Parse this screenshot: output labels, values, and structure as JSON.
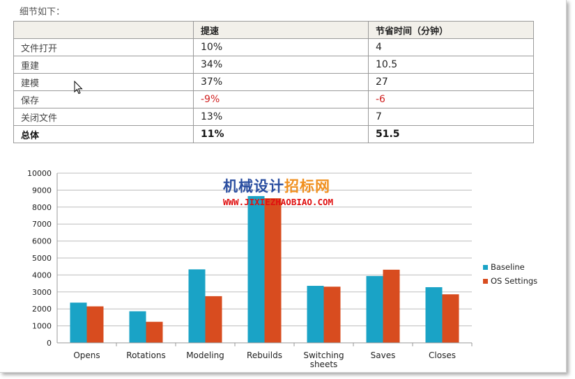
{
  "intro": "细节如下：",
  "table": {
    "headers": [
      "",
      "提速",
      "节省时间（分钟）"
    ],
    "rows": [
      {
        "category": "文件打开",
        "speedup": "10%",
        "saved": "4",
        "negative": false,
        "total": false
      },
      {
        "category": "重建",
        "speedup": "34%",
        "saved": "10.5",
        "negative": false,
        "total": false
      },
      {
        "category": "建模",
        "speedup": "37%",
        "saved": "27",
        "negative": false,
        "total": false
      },
      {
        "category": "保存",
        "speedup": "-9%",
        "saved": "-6",
        "negative": true,
        "total": false
      },
      {
        "category": "关闭文件",
        "speedup": "13%",
        "saved": "7",
        "negative": false,
        "total": false
      },
      {
        "category": "总体",
        "speedup": "11%",
        "saved": "51.5",
        "negative": false,
        "total": true
      }
    ]
  },
  "watermark": {
    "title_part1": "机械设计",
    "title_part2": "招标网",
    "url": "WWW.JIXIEZHAOBIAO.COM"
  },
  "colors": {
    "baseline": "#1aa3c6",
    "os_settings": "#d84c1f",
    "negative_text": "#d02020"
  },
  "chart_data": {
    "type": "bar",
    "categories": [
      "Opens",
      "Rotations",
      "Modeling",
      "Rebuilds",
      "Switching sheets",
      "Saves",
      "Closes"
    ],
    "series": [
      {
        "name": "Baseline",
        "values": [
          2370,
          1860,
          4330,
          8650,
          3360,
          3940,
          3280
        ]
      },
      {
        "name": "OS Settings",
        "values": [
          2150,
          1240,
          2750,
          8520,
          3310,
          4310,
          2860
        ]
      }
    ],
    "ylim": [
      0,
      10000
    ],
    "yticks": [
      "0",
      "1000",
      "2000",
      "3000",
      "4000",
      "5000",
      "6000",
      "7000",
      "8000",
      "9000",
      "10000"
    ],
    "grid": true,
    "legend_position": "right",
    "title": "",
    "xlabel": "",
    "ylabel": ""
  }
}
